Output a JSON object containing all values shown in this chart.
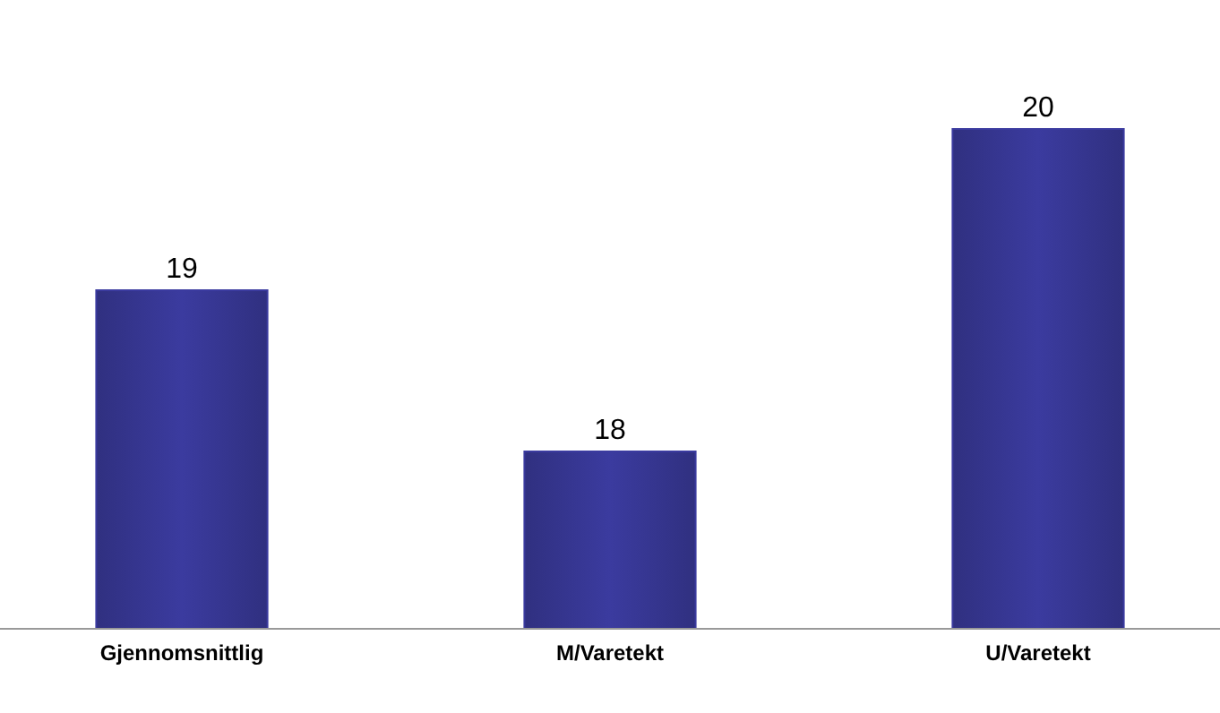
{
  "chart_data": {
    "type": "bar",
    "categories": [
      "Gjennomsnittlig",
      "M/Varetekt",
      "U/Varetekt"
    ],
    "values": [
      19,
      18,
      20
    ],
    "color": "#3b3b9f",
    "ylim": [
      16.9,
      20
    ],
    "data_labels": true,
    "tick_labels": "x"
  }
}
